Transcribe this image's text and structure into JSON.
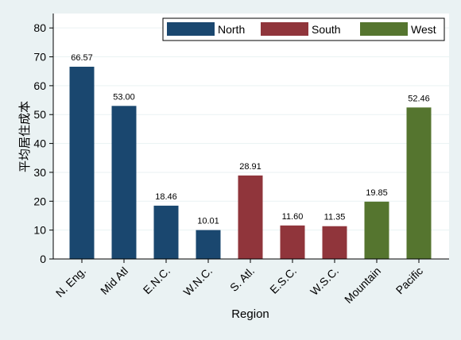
{
  "chart_data": {
    "type": "bar",
    "xlabel": "Region",
    "ylabel": "平均居住成本",
    "ylim": [
      0,
      85
    ],
    "yticks": [
      0,
      10,
      20,
      30,
      40,
      50,
      60,
      70,
      80
    ],
    "grid": true,
    "legend": "top-right",
    "categories": [
      "N. Eng.",
      "Mid Atl",
      "E.N.C.",
      "W.N.C.",
      "S. Atl.",
      "E.S.C.",
      "W.S.C.",
      "Mountain",
      "Pacific"
    ],
    "values": [
      66.57,
      53.0,
      18.46,
      10.01,
      28.91,
      11.6,
      11.35,
      19.85,
      52.46
    ],
    "value_labels": [
      "66.57",
      "53.00",
      "18.46",
      "10.01",
      "28.91",
      "11.60",
      "11.35",
      "19.85",
      "52.46"
    ],
    "groups": [
      "North",
      "North",
      "North",
      "North",
      "South",
      "South",
      "South",
      "West",
      "West"
    ],
    "series": [
      {
        "name": "North",
        "color": "#1a476f"
      },
      {
        "name": "South",
        "color": "#90353b"
      },
      {
        "name": "West",
        "color": "#55752f"
      }
    ]
  }
}
